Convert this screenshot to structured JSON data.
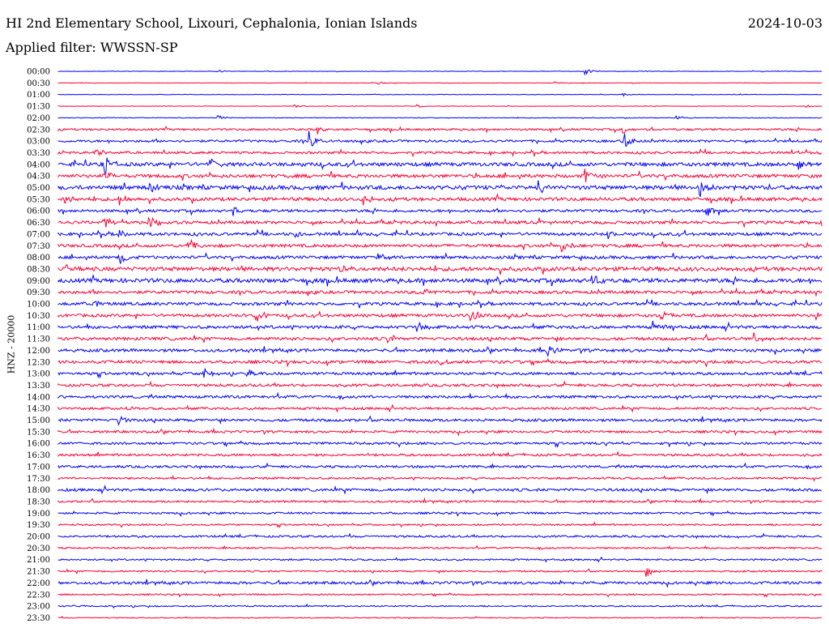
{
  "header": {
    "title": "HI 2nd Elementary School, Lixouri, Cephalonia, Ionian Islands",
    "date": "2024-10-03",
    "filter": "Applied filter: WWSSN-SP"
  },
  "chart_data": {
    "type": "line",
    "ylabel": "HNZ - 20000",
    "colors": [
      "#0000ff",
      "#ff0033"
    ],
    "rows": [
      "00:00",
      "00:30",
      "01:00",
      "01:30",
      "02:00",
      "02:30",
      "03:00",
      "03:30",
      "04:00",
      "04:30",
      "05:00",
      "05:30",
      "06:00",
      "06:30",
      "07:00",
      "07:30",
      "08:00",
      "08:30",
      "09:00",
      "09:30",
      "10:00",
      "10:30",
      "11:00",
      "11:30",
      "12:00",
      "12:30",
      "13:00",
      "13:30",
      "14:00",
      "14:30",
      "15:00",
      "15:30",
      "16:00",
      "16:30",
      "17:00",
      "17:30",
      "18:00",
      "18:30",
      "19:00",
      "19:30",
      "20:00",
      "20:30",
      "21:00",
      "21:30",
      "22:00",
      "22:30",
      "23:00",
      "23:30"
    ],
    "noise_level": [
      0.3,
      0.3,
      0.3,
      0.3,
      0.4,
      1.2,
      1.4,
      1.4,
      2.2,
      2.0,
      2.4,
      2.0,
      1.6,
      1.8,
      1.8,
      1.8,
      1.8,
      2.4,
      2.4,
      1.8,
      1.8,
      1.8,
      1.8,
      1.8,
      1.8,
      1.8,
      1.6,
      1.6,
      1.6,
      1.4,
      1.6,
      1.4,
      1.4,
      1.4,
      1.4,
      1.2,
      1.6,
      1.2,
      1.2,
      1.0,
      1.2,
      1.0,
      1.0,
      1.0,
      1.6,
      0.9,
      0.8,
      0.6
    ],
    "events": [
      {
        "row": 0,
        "t": 0.69,
        "amp": 4
      },
      {
        "row": 0,
        "t": 0.21,
        "amp": 1.5
      },
      {
        "row": 1,
        "t": 0.42,
        "amp": 2
      },
      {
        "row": 1,
        "t": 0.65,
        "amp": 2
      },
      {
        "row": 2,
        "t": 0.74,
        "amp": 2
      },
      {
        "row": 3,
        "t": 0.31,
        "amp": 2
      },
      {
        "row": 3,
        "t": 0.47,
        "amp": 2
      },
      {
        "row": 3,
        "t": 0.98,
        "amp": 2
      },
      {
        "row": 4,
        "t": 0.21,
        "amp": 4
      },
      {
        "row": 4,
        "t": 0.81,
        "amp": 3
      },
      {
        "row": 5,
        "t": 0.34,
        "amp": 5
      },
      {
        "row": 5,
        "t": 0.74,
        "amp": 5
      },
      {
        "row": 6,
        "t": 0.33,
        "amp": 12
      },
      {
        "row": 6,
        "t": 0.74,
        "amp": 12
      },
      {
        "row": 7,
        "t": 0.05,
        "amp": 6
      },
      {
        "row": 7,
        "t": 0.97,
        "amp": 4
      },
      {
        "row": 8,
        "t": 0.06,
        "amp": 14
      },
      {
        "row": 8,
        "t": 0.2,
        "amp": 6
      },
      {
        "row": 8,
        "t": 0.97,
        "amp": 8
      },
      {
        "row": 9,
        "t": 0.06,
        "amp": 9
      },
      {
        "row": 9,
        "t": 0.69,
        "amp": 9
      },
      {
        "row": 10,
        "t": 0.12,
        "amp": 7
      },
      {
        "row": 10,
        "t": 0.63,
        "amp": 7
      },
      {
        "row": 10,
        "t": 0.84,
        "amp": 10
      },
      {
        "row": 11,
        "t": 0.01,
        "amp": 7
      },
      {
        "row": 11,
        "t": 0.08,
        "amp": 7
      },
      {
        "row": 11,
        "t": 0.4,
        "amp": 7
      },
      {
        "row": 12,
        "t": 0.23,
        "amp": 6
      },
      {
        "row": 12,
        "t": 0.85,
        "amp": 7
      },
      {
        "row": 13,
        "t": 0.06,
        "amp": 7
      },
      {
        "row": 13,
        "t": 0.12,
        "amp": 9
      },
      {
        "row": 13,
        "t": 0.63,
        "amp": 6
      },
      {
        "row": 14,
        "t": 0.08,
        "amp": 7
      },
      {
        "row": 14,
        "t": 0.31,
        "amp": 10
      },
      {
        "row": 14,
        "t": 0.72,
        "amp": 5
      },
      {
        "row": 15,
        "t": 0.17,
        "amp": 9
      },
      {
        "row": 15,
        "t": 0.66,
        "amp": 8
      },
      {
        "row": 16,
        "t": 0.08,
        "amp": 9
      },
      {
        "row": 16,
        "t": 0.42,
        "amp": 10
      },
      {
        "row": 17,
        "t": 0.01,
        "amp": 6
      },
      {
        "row": 17,
        "t": 0.37,
        "amp": 5
      },
      {
        "row": 18,
        "t": 0.7,
        "amp": 7
      },
      {
        "row": 19,
        "t": 0.48,
        "amp": 4
      },
      {
        "row": 20,
        "t": 0.05,
        "amp": 5
      },
      {
        "row": 21,
        "t": 0.26,
        "amp": 9
      },
      {
        "row": 21,
        "t": 0.54,
        "amp": 8
      },
      {
        "row": 21,
        "t": 0.79,
        "amp": 7
      },
      {
        "row": 21,
        "t": 0.99,
        "amp": 8
      },
      {
        "row": 22,
        "t": 0.47,
        "amp": 8
      },
      {
        "row": 22,
        "t": 0.78,
        "amp": 9
      },
      {
        "row": 23,
        "t": 0.43,
        "amp": 8
      },
      {
        "row": 23,
        "t": 0.91,
        "amp": 8
      },
      {
        "row": 24,
        "t": 0.64,
        "amp": 7
      },
      {
        "row": 25,
        "t": 0.5,
        "amp": 6
      },
      {
        "row": 26,
        "t": 0.19,
        "amp": 9
      },
      {
        "row": 26,
        "t": 0.25,
        "amp": 6
      },
      {
        "row": 29,
        "t": 0.09,
        "amp": 3
      },
      {
        "row": 30,
        "t": 0.08,
        "amp": 6
      },
      {
        "row": 32,
        "t": 0.72,
        "amp": 3
      },
      {
        "row": 43,
        "t": 0.77,
        "amp": 8
      },
      {
        "row": 46,
        "t": 0.02,
        "amp": 2
      }
    ]
  }
}
